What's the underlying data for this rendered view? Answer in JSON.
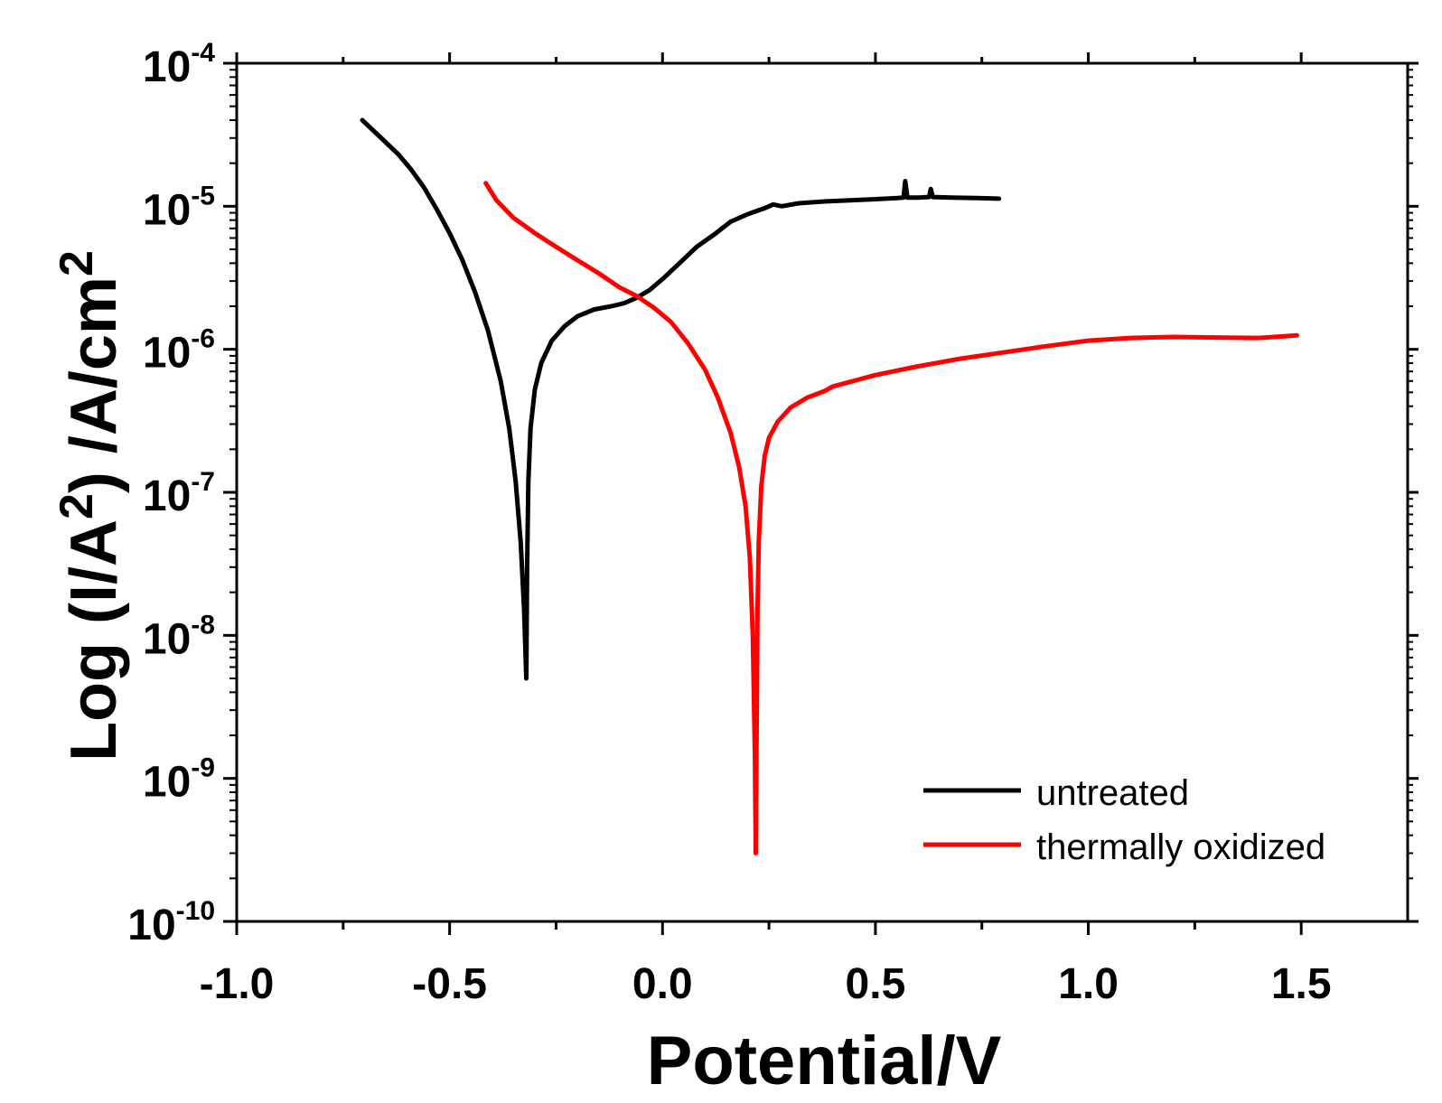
{
  "chart_data": {
    "type": "line",
    "title": "",
    "xlabel": "Potential/V",
    "ylabel_parts": {
      "prefix": "Log (I/A",
      "sup1": "2",
      "middle": ") /A/cm",
      "sup2": "2"
    },
    "xlim": [
      -1.0,
      1.75
    ],
    "ylim_log10": [
      -10,
      -4
    ],
    "x_ticks": [
      -1.0,
      -0.5,
      0.0,
      0.5,
      1.0,
      1.5
    ],
    "x_tick_labels": [
      "-1.0",
      "-0.5",
      "0.0",
      "0.5",
      "1.0",
      "1.5"
    ],
    "x_minor_ticks": [
      -0.75,
      -0.25,
      0.25,
      0.75,
      1.25
    ],
    "y_ticks_log10": [
      -10,
      -9,
      -8,
      -7,
      -6,
      -5,
      -4
    ],
    "y_tick_labels": [
      {
        "base": "10",
        "exp": "-10"
      },
      {
        "base": "10",
        "exp": "-9"
      },
      {
        "base": "10",
        "exp": "-8"
      },
      {
        "base": "10",
        "exp": "-7"
      },
      {
        "base": "10",
        "exp": "-6"
      },
      {
        "base": "10",
        "exp": "-5"
      },
      {
        "base": "10",
        "exp": "-4"
      }
    ],
    "legend_position": "bottom-right",
    "series": [
      {
        "name": "untreated",
        "color": "#000000",
        "points": [
          [
            -0.705,
            4e-05
          ],
          [
            -0.68,
            3.4e-05
          ],
          [
            -0.65,
            2.8e-05
          ],
          [
            -0.62,
            2.3e-05
          ],
          [
            -0.59,
            1.8e-05
          ],
          [
            -0.56,
            1.35e-05
          ],
          [
            -0.53,
            9.5e-06
          ],
          [
            -0.5,
            6.5e-06
          ],
          [
            -0.47,
            4.2e-06
          ],
          [
            -0.44,
            2.5e-06
          ],
          [
            -0.41,
            1.35e-06
          ],
          [
            -0.38,
            6e-07
          ],
          [
            -0.36,
            2.8e-07
          ],
          [
            -0.345,
            1.2e-07
          ],
          [
            -0.333,
            4.5e-08
          ],
          [
            -0.325,
            1.5e-08
          ],
          [
            -0.32,
            5e-09
          ],
          [
            -0.318,
            3e-08
          ],
          [
            -0.315,
            1.2e-07
          ],
          [
            -0.31,
            2.8e-07
          ],
          [
            -0.3,
            5.2e-07
          ],
          [
            -0.285,
            8e-07
          ],
          [
            -0.26,
            1.15e-06
          ],
          [
            -0.23,
            1.45e-06
          ],
          [
            -0.2,
            1.7e-06
          ],
          [
            -0.16,
            1.9e-06
          ],
          [
            -0.12,
            2e-06
          ],
          [
            -0.09,
            2.1e-06
          ],
          [
            -0.06,
            2.3e-06
          ],
          [
            -0.03,
            2.6e-06
          ],
          [
            0.0,
            3.1e-06
          ],
          [
            0.04,
            4e-06
          ],
          [
            0.08,
            5.2e-06
          ],
          [
            0.12,
            6.3e-06
          ],
          [
            0.16,
            7.8e-06
          ],
          [
            0.2,
            8.8e-06
          ],
          [
            0.24,
            9.7e-06
          ],
          [
            0.26,
            1.03e-05
          ],
          [
            0.28,
            1e-05
          ],
          [
            0.32,
            1.05e-05
          ],
          [
            0.38,
            1.08e-05
          ],
          [
            0.44,
            1.1e-05
          ],
          [
            0.5,
            1.12e-05
          ],
          [
            0.55,
            1.14e-05
          ],
          [
            0.566,
            1.15e-05
          ],
          [
            0.57,
            1.5e-05
          ],
          [
            0.575,
            1.15e-05
          ],
          [
            0.6,
            1.15e-05
          ],
          [
            0.626,
            1.16e-05
          ],
          [
            0.63,
            1.32e-05
          ],
          [
            0.635,
            1.16e-05
          ],
          [
            0.68,
            1.15e-05
          ],
          [
            0.74,
            1.14e-05
          ],
          [
            0.79,
            1.13e-05
          ]
        ]
      },
      {
        "name": "thermally oxidized",
        "color": "#ff0000",
        "points": [
          [
            -0.415,
            1.45e-05
          ],
          [
            -0.39,
            1.1e-05
          ],
          [
            -0.35,
            8.3e-06
          ],
          [
            -0.3,
            6.5e-06
          ],
          [
            -0.25,
            5.2e-06
          ],
          [
            -0.2,
            4.2e-06
          ],
          [
            -0.15,
            3.4e-06
          ],
          [
            -0.1,
            2.7e-06
          ],
          [
            -0.06,
            2.35e-06
          ],
          [
            -0.02,
            1.95e-06
          ],
          [
            0.02,
            1.55e-06
          ],
          [
            0.06,
            1.1e-06
          ],
          [
            0.1,
            7.2e-07
          ],
          [
            0.13,
            4.6e-07
          ],
          [
            0.16,
            2.6e-07
          ],
          [
            0.18,
            1.5e-07
          ],
          [
            0.195,
            8e-08
          ],
          [
            0.205,
            3.5e-08
          ],
          [
            0.212,
            1e-08
          ],
          [
            0.217,
            1.5e-09
          ],
          [
            0.219,
            3e-10
          ],
          [
            0.221,
            2e-09
          ],
          [
            0.223,
            1.5e-08
          ],
          [
            0.226,
            4.5e-08
          ],
          [
            0.232,
            1.1e-07
          ],
          [
            0.24,
            1.8e-07
          ],
          [
            0.25,
            2.4e-07
          ],
          [
            0.27,
            3.1e-07
          ],
          [
            0.3,
            3.9e-07
          ],
          [
            0.34,
            4.6e-07
          ],
          [
            0.38,
            5.1e-07
          ],
          [
            0.4,
            5.5e-07
          ],
          [
            0.5,
            6.6e-07
          ],
          [
            0.6,
            7.6e-07
          ],
          [
            0.7,
            8.6e-07
          ],
          [
            0.8,
            9.5e-07
          ],
          [
            0.9,
            1.05e-06
          ],
          [
            1.0,
            1.15e-06
          ],
          [
            1.1,
            1.2e-06
          ],
          [
            1.2,
            1.22e-06
          ],
          [
            1.3,
            1.21e-06
          ],
          [
            1.4,
            1.2e-06
          ],
          [
            1.49,
            1.25e-06
          ]
        ]
      }
    ]
  }
}
